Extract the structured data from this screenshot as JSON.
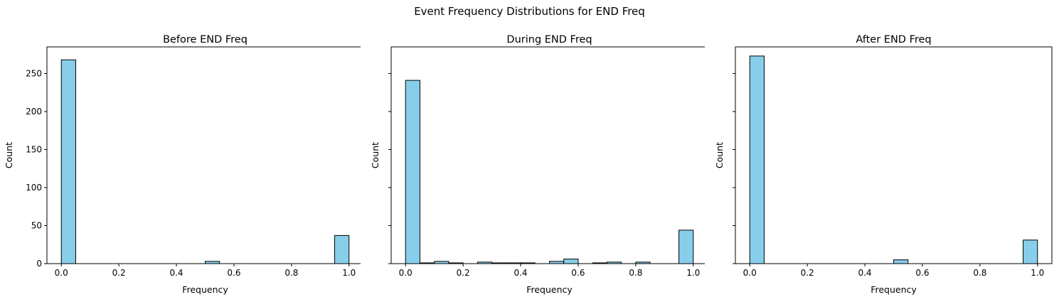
{
  "figure": {
    "suptitle": "Event Frequency Distributions for END Freq"
  },
  "chart_data": [
    {
      "type": "bar",
      "title": "Before END Freq",
      "xlabel": "Frequency",
      "ylabel": "Count",
      "xlim": [
        -0.05,
        1.05
      ],
      "ylim": [
        0,
        285
      ],
      "xticks": [
        "0.0",
        "0.2",
        "0.4",
        "0.6",
        "0.8",
        "1.0"
      ],
      "yticks": [
        "0",
        "50",
        "100",
        "150",
        "200",
        "250"
      ],
      "bar_color": "#87ceeb",
      "edge_color": "#000000",
      "bins": [
        {
          "x0": 0.0,
          "x1": 0.05,
          "count": 268
        },
        {
          "x0": 0.5,
          "x1": 0.55,
          "count": 3
        },
        {
          "x0": 0.95,
          "x1": 1.0,
          "count": 37
        }
      ]
    },
    {
      "type": "bar",
      "title": "During END Freq",
      "xlabel": "Frequency",
      "ylabel": "Count",
      "xlim": [
        -0.05,
        1.05
      ],
      "ylim": [
        0,
        285
      ],
      "xticks": [
        "0.0",
        "0.2",
        "0.4",
        "0.6",
        "0.8",
        "1.0"
      ],
      "yticks": [],
      "bar_color": "#87ceeb",
      "edge_color": "#000000",
      "bins": [
        {
          "x0": 0.0,
          "x1": 0.05,
          "count": 241
        },
        {
          "x0": 0.05,
          "x1": 0.1,
          "count": 1
        },
        {
          "x0": 0.1,
          "x1": 0.15,
          "count": 3
        },
        {
          "x0": 0.15,
          "x1": 0.2,
          "count": 1
        },
        {
          "x0": 0.25,
          "x1": 0.3,
          "count": 2
        },
        {
          "x0": 0.3,
          "x1": 0.35,
          "count": 1
        },
        {
          "x0": 0.35,
          "x1": 0.4,
          "count": 1
        },
        {
          "x0": 0.4,
          "x1": 0.45,
          "count": 1
        },
        {
          "x0": 0.5,
          "x1": 0.55,
          "count": 3
        },
        {
          "x0": 0.55,
          "x1": 0.6,
          "count": 6
        },
        {
          "x0": 0.65,
          "x1": 0.7,
          "count": 1
        },
        {
          "x0": 0.7,
          "x1": 0.75,
          "count": 2
        },
        {
          "x0": 0.8,
          "x1": 0.85,
          "count": 2
        },
        {
          "x0": 0.95,
          "x1": 1.0,
          "count": 44
        }
      ]
    },
    {
      "type": "bar",
      "title": "After END Freq",
      "xlabel": "Frequency",
      "ylabel": "Count",
      "xlim": [
        -0.05,
        1.05
      ],
      "ylim": [
        0,
        285
      ],
      "xticks": [
        "0.0",
        "0.2",
        "0.4",
        "0.6",
        "0.8",
        "1.0"
      ],
      "yticks": [],
      "bar_color": "#87ceeb",
      "edge_color": "#000000",
      "bins": [
        {
          "x0": 0.0,
          "x1": 0.05,
          "count": 273
        },
        {
          "x0": 0.5,
          "x1": 0.55,
          "count": 5
        },
        {
          "x0": 0.95,
          "x1": 1.0,
          "count": 31
        }
      ]
    }
  ]
}
